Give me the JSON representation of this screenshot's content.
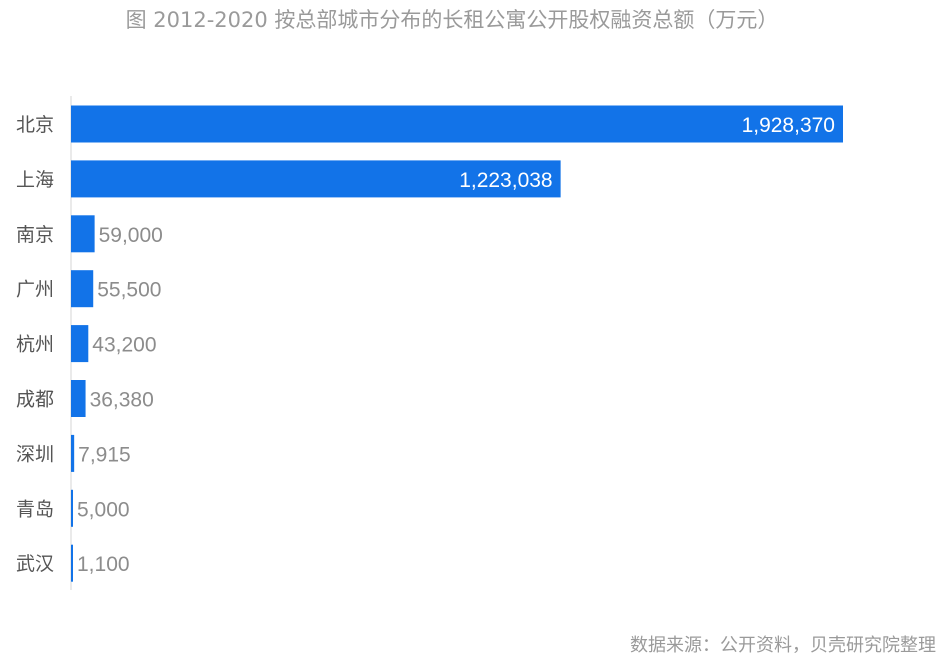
{
  "chart_data": {
    "type": "bar",
    "orientation": "horizontal",
    "title": "图 2012-2020 按总部城市分布的长租公寓公开股权融资总额（万元）",
    "categories": [
      "北京",
      "上海",
      "南京",
      "广州",
      "杭州",
      "成都",
      "深圳",
      "青岛",
      "武汉"
    ],
    "values": [
      1928370,
      1223038,
      59000,
      55500,
      43200,
      36380,
      7915,
      5000,
      1100
    ],
    "value_labels": [
      "1,928,370",
      "1,223,038",
      "59,000",
      "55,500",
      "43,200",
      "36,380",
      "7,915",
      "5,000",
      "1,100"
    ],
    "xlim": [
      0,
      1928370
    ],
    "grid": false,
    "bar_color": "#1273e8",
    "inside_label_color": "#ffffff",
    "outside_label_color": "#8c8c8c",
    "source": "数据来源：公开资料，贝壳研究院整理"
  }
}
